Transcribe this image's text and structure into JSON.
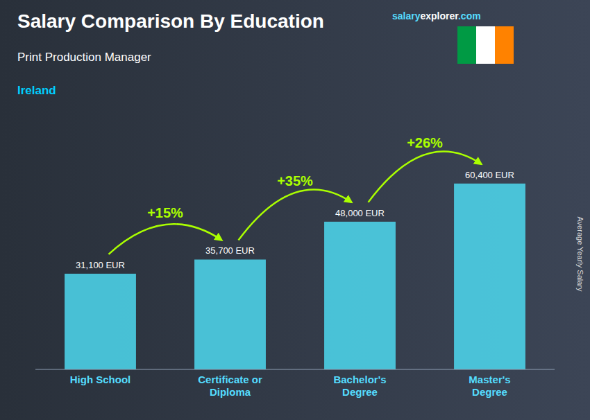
{
  "chart_data": {
    "type": "bar",
    "title": "Salary Comparison By Education",
    "subtitle": "Print Production Manager",
    "country": "Ireland",
    "source": [
      "salary",
      "explorer",
      ".com"
    ],
    "ylabel": "Average Yearly Salary",
    "categories": [
      "High School",
      "Certificate or\nDiploma",
      "Bachelor's\nDegree",
      "Master's\nDegree"
    ],
    "values": [
      31100,
      35700,
      48000,
      60400
    ],
    "value_labels": [
      "31,100 EUR",
      "35,700 EUR",
      "48,000 EUR",
      "60,400 EUR"
    ],
    "data_labels": true,
    "annotations": [
      "+15%",
      "+35%",
      "+26%"
    ],
    "color": "#4dd9f0",
    "ylim": [
      0,
      75000
    ],
    "tick_labels": "x",
    "grid": false
  }
}
